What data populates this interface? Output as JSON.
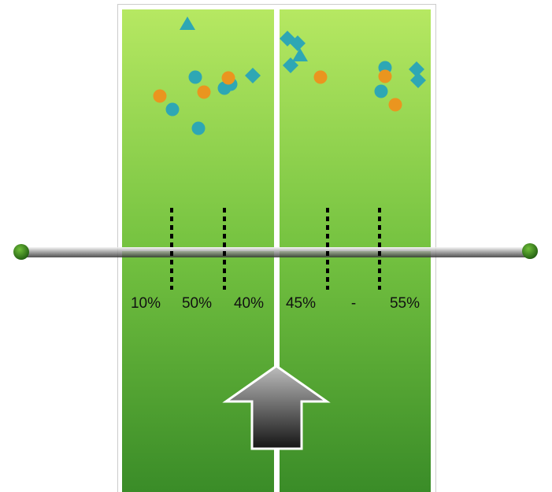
{
  "labels": [
    "10%",
    "50%",
    "40%",
    "45%",
    "-",
    "55%"
  ]
}
